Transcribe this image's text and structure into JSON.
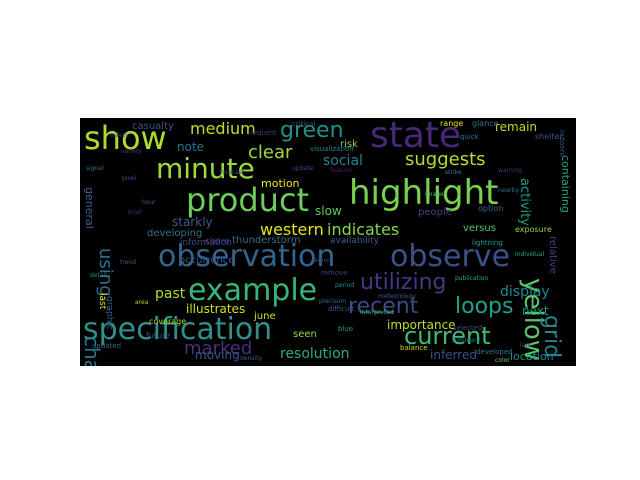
{
  "word_cloud": {
    "words": [
      {
        "text": "observation",
        "color": "#31668e"
      },
      {
        "text": "specification",
        "color": "#2f918c"
      },
      {
        "text": "example",
        "color": "#35b779"
      },
      {
        "text": "observe",
        "color": "#3b518b"
      },
      {
        "text": "highlight",
        "color": "#7ad151"
      },
      {
        "text": "state",
        "color": "#482878"
      },
      {
        "text": "product",
        "color": "#6ccd5a"
      },
      {
        "text": "minute",
        "color": "#a0da39"
      },
      {
        "text": "show",
        "color": "#addc30"
      },
      {
        "text": "changed",
        "color": "#2a788e"
      },
      {
        "text": "yellow",
        "color": "#58c765"
      },
      {
        "text": "utilizing",
        "color": "#443983"
      },
      {
        "text": "current",
        "color": "#3fbc73"
      },
      {
        "text": "recent",
        "color": "#3e4989"
      },
      {
        "text": "loops",
        "color": "#1fa187"
      },
      {
        "text": "grid",
        "color": "#25838e"
      },
      {
        "text": "using",
        "color": "#2c728e"
      },
      {
        "text": "marked",
        "color": "#46307e"
      },
      {
        "text": "green",
        "color": "#21918c"
      },
      {
        "text": "suggests",
        "color": "#b5de2b"
      },
      {
        "text": "clear",
        "color": "#a2da37"
      },
      {
        "text": "medium",
        "color": "#bddf26"
      },
      {
        "text": "western",
        "color": "#e5e419"
      },
      {
        "text": "indicates",
        "color": "#86d549"
      },
      {
        "text": "resolution",
        "color": "#28ae80"
      },
      {
        "text": "social",
        "color": "#26828e"
      },
      {
        "text": "activity",
        "color": "#1e9c89"
      },
      {
        "text": "display",
        "color": "#24868e"
      },
      {
        "text": "importance",
        "color": "#c2df23"
      },
      {
        "text": "illustrates",
        "color": "#d5e21a"
      },
      {
        "text": "next",
        "color": "#1f958b"
      },
      {
        "text": "remain",
        "color": "#bade28"
      },
      {
        "text": "inferred",
        "color": "#3d4e8a"
      },
      {
        "text": "location",
        "color": "#23898e"
      },
      {
        "text": "past",
        "color": "#b0dd2f"
      },
      {
        "text": "moving",
        "color": "#39568c"
      },
      {
        "text": "starkly",
        "color": "#375b8d"
      },
      {
        "text": "note",
        "color": "#2c718e"
      },
      {
        "text": "containing",
        "color": "#20a486"
      },
      {
        "text": "slow",
        "color": "#5ac864"
      },
      {
        "text": "general",
        "color": "#34618d"
      },
      {
        "text": "developing",
        "color": "#2d708e"
      },
      {
        "text": "thunderstorm",
        "color": "#2e6e8e"
      },
      {
        "text": "motion",
        "color": "#efe51c"
      },
      {
        "text": "occurrence",
        "color": "#3a548c"
      },
      {
        "text": "june",
        "color": "#cae11f"
      },
      {
        "text": "seen",
        "color": "#95d840"
      },
      {
        "text": "people",
        "color": "#433e85"
      },
      {
        "text": "versus",
        "color": "#52c569"
      },
      {
        "text": "relative",
        "color": "#424086"
      },
      {
        "text": "casualty",
        "color": "#3b528b"
      },
      {
        "text": "risk",
        "color": "#7fd34e"
      },
      {
        "text": "information",
        "color": "#3e4a89"
      },
      {
        "text": "share",
        "color": "#443a83"
      },
      {
        "text": "availability",
        "color": "#355f8d"
      },
      {
        "text": "graphic",
        "color": "#33638d"
      },
      {
        "text": "last",
        "color": "#e7e419"
      },
      {
        "text": "coverage",
        "color": "#aadc32"
      },
      {
        "text": "future",
        "color": "#3c4f8a"
      },
      {
        "text": "range",
        "color": "#eae51a"
      },
      {
        "text": "glance",
        "color": "#2a768e"
      },
      {
        "text": "option",
        "color": "#2f6b8e"
      },
      {
        "text": "exposure",
        "color": "#8ed645"
      },
      {
        "text": "shelter",
        "color": "#3b518b"
      },
      {
        "text": "critical",
        "color": "#404688"
      },
      {
        "text": "visualization",
        "color": "#27808e"
      },
      {
        "text": "request",
        "color": "#46327e"
      },
      {
        "text": "quick",
        "color": "#2d708e"
      },
      {
        "text": "indoors",
        "color": "#3b528b"
      },
      {
        "text": "lightning",
        "color": "#1fa088"
      },
      {
        "text": "remove",
        "color": "#453781"
      },
      {
        "text": "updated",
        "color": "#31678e"
      },
      {
        "text": "difficult",
        "color": "#37598c"
      },
      {
        "text": "blue",
        "color": "#1f9f88"
      },
      {
        "text": "developed",
        "color": "#2b748e"
      },
      {
        "text": "balance",
        "color": "#ccde1d"
      },
      {
        "text": "selected",
        "color": "#414487"
      },
      {
        "text": "color",
        "color": "#6ece58"
      },
      {
        "text": "labs",
        "color": "#3f4788"
      },
      {
        "text": "individual",
        "color": "#25ab82"
      },
      {
        "text": "safety",
        "color": "#472f7d"
      },
      {
        "text": "variety",
        "color": "#433d84"
      },
      {
        "text": "precision",
        "color": "#2b758e"
      },
      {
        "text": "meteorology",
        "color": "#365c8d"
      },
      {
        "text": "interpreted",
        "color": "#42be71"
      },
      {
        "text": "summary",
        "color": "#2c718e"
      },
      {
        "text": "publication",
        "color": "#24aa83"
      },
      {
        "text": "forecast",
        "color": "#3e4c8a"
      },
      {
        "text": "pixel",
        "color": "#3f4889"
      },
      {
        "text": "signal",
        "color": "#2d708e"
      },
      {
        "text": "hour",
        "color": "#3a538b"
      },
      {
        "text": "brief",
        "color": "#482677"
      },
      {
        "text": "detail",
        "color": "#24878e"
      },
      {
        "text": "trend",
        "color": "#34608d"
      },
      {
        "text": "area",
        "color": "#b2dd2d"
      },
      {
        "text": "region",
        "color": "#3f4889"
      },
      {
        "text": "period",
        "color": "#1f968b"
      },
      {
        "text": "warning",
        "color": "#453882"
      },
      {
        "text": "nearby",
        "color": "#2a768e"
      },
      {
        "text": "image",
        "color": "#4ac16d"
      },
      {
        "text": "update",
        "color": "#3e4a89"
      },
      {
        "text": "feature",
        "color": "#481f70"
      },
      {
        "text": "strike",
        "color": "#26818e"
      },
      {
        "text": "density",
        "color": "#38588c"
      }
    ]
  }
}
